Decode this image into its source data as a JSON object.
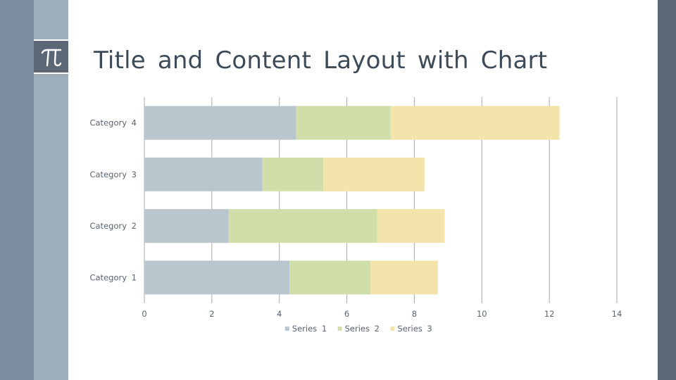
{
  "slide": {
    "title": "Title and Content Layout with Chart",
    "logo_icon": "pi-icon"
  },
  "chart_data": {
    "type": "bar",
    "orientation": "horizontal",
    "stacked": true,
    "categories": [
      "Category 1",
      "Category 2",
      "Category 3",
      "Category 4"
    ],
    "series": [
      {
        "name": "Series 1",
        "values": [
          4.3,
          2.5,
          3.5,
          4.5
        ],
        "color": "#bac6ce"
      },
      {
        "name": "Series 2",
        "values": [
          2.4,
          4.4,
          1.8,
          2.8
        ],
        "color": "#d0dfaa"
      },
      {
        "name": "Series 3",
        "values": [
          2.0,
          2.0,
          3.0,
          5.0
        ],
        "color": "#f2e4ab"
      }
    ],
    "xlim": [
      0,
      14
    ],
    "xticks": [
      "0",
      "2",
      "4",
      "6",
      "8",
      "10",
      "12",
      "14"
    ],
    "grid": true,
    "legend_position": "bottom",
    "colors": {
      "grid": "#a8a8a8",
      "text": "#5a6470",
      "title": "#3d4a57"
    }
  }
}
